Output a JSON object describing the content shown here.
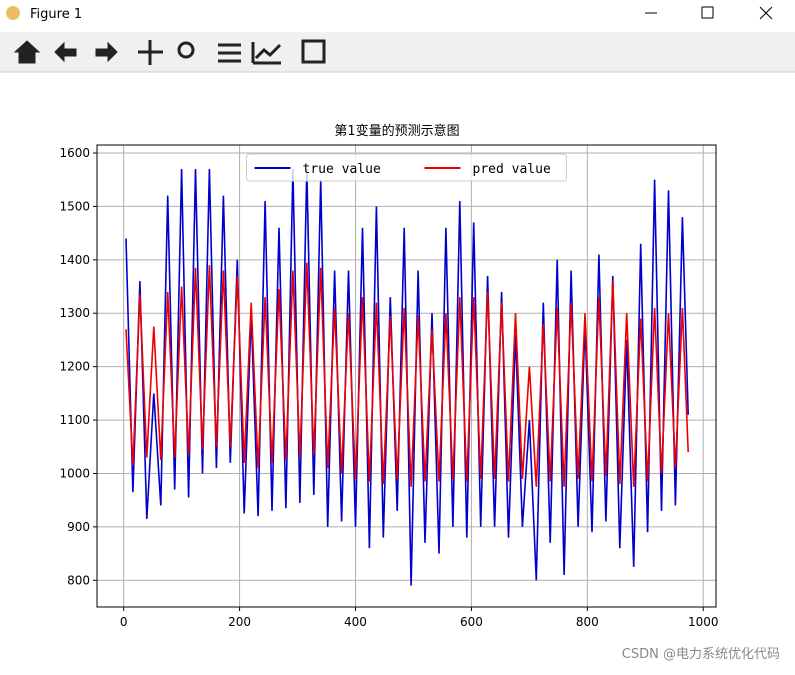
{
  "window": {
    "title": "Figure 1"
  },
  "watermark": "CSDN @电力系统优化代码",
  "chart_data": {
    "type": "line",
    "title": "第1变量的预测示意图",
    "x": [
      4,
      16,
      28,
      40,
      52,
      64,
      76,
      88,
      100,
      112,
      124,
      136,
      148,
      160,
      172,
      184,
      196,
      208,
      220,
      232,
      244,
      256,
      268,
      280,
      292,
      304,
      316,
      328,
      340,
      352,
      364,
      376,
      388,
      400,
      412,
      424,
      436,
      448,
      460,
      472,
      484,
      496,
      508,
      520,
      532,
      544,
      556,
      568,
      580,
      592,
      604,
      616,
      628,
      640,
      652,
      664,
      676,
      688,
      700,
      712,
      724,
      736,
      748,
      760,
      772,
      784,
      796,
      808,
      820,
      832,
      844,
      856,
      868,
      880,
      892,
      904,
      916,
      928,
      940,
      952,
      964,
      974
    ],
    "series": [
      {
        "name": "true value",
        "color": "#0000cc",
        "values": [
          1440,
          965,
          1360,
          915,
          1150,
          940,
          1520,
          970,
          1570,
          955,
          1570,
          1000,
          1570,
          1010,
          1520,
          1020,
          1400,
          925,
          1300,
          920,
          1510,
          930,
          1460,
          935,
          1570,
          945,
          1570,
          960,
          1550,
          900,
          1380,
          910,
          1380,
          900,
          1460,
          860,
          1500,
          880,
          1330,
          930,
          1460,
          790,
          1380,
          870,
          1300,
          850,
          1460,
          900,
          1510,
          880,
          1470,
          900,
          1370,
          900,
          1340,
          880,
          1260,
          900,
          1100,
          800,
          1320,
          870,
          1400,
          810,
          1380,
          900,
          1280,
          890,
          1410,
          910,
          1370,
          860,
          1250,
          825,
          1430,
          890,
          1550,
          930,
          1530,
          940,
          1480,
          1110
        ]
      },
      {
        "name": "pred value",
        "color": "#ee0000",
        "values": [
          1270,
          1015,
          1335,
          1030,
          1275,
          1025,
          1340,
          1030,
          1350,
          1035,
          1385,
          1045,
          1390,
          1050,
          1380,
          1050,
          1370,
          1020,
          1320,
          1010,
          1330,
          1020,
          1345,
          1025,
          1380,
          1030,
          1395,
          1035,
          1385,
          1010,
          1310,
          1000,
          1300,
          990,
          1330,
          985,
          1320,
          980,
          1295,
          990,
          1310,
          975,
          1295,
          985,
          1270,
          985,
          1300,
          990,
          1330,
          985,
          1330,
          990,
          1340,
          990,
          1320,
          985,
          1300,
          990,
          1200,
          975,
          1280,
          985,
          1310,
          975,
          1320,
          990,
          1300,
          985,
          1330,
          995,
          1360,
          980,
          1300,
          975,
          1290,
          985,
          1310,
          1000,
          1300,
          1010,
          1310,
          1040
        ]
      }
    ],
    "xlim": [
      -46,
      1022
    ],
    "ylim": [
      750,
      1615
    ],
    "xticks": [
      0,
      200,
      400,
      600,
      800,
      1000
    ],
    "yticks": [
      800,
      900,
      1000,
      1100,
      1200,
      1300,
      1400,
      1500,
      1600
    ],
    "grid": true,
    "legend": "upper center"
  }
}
